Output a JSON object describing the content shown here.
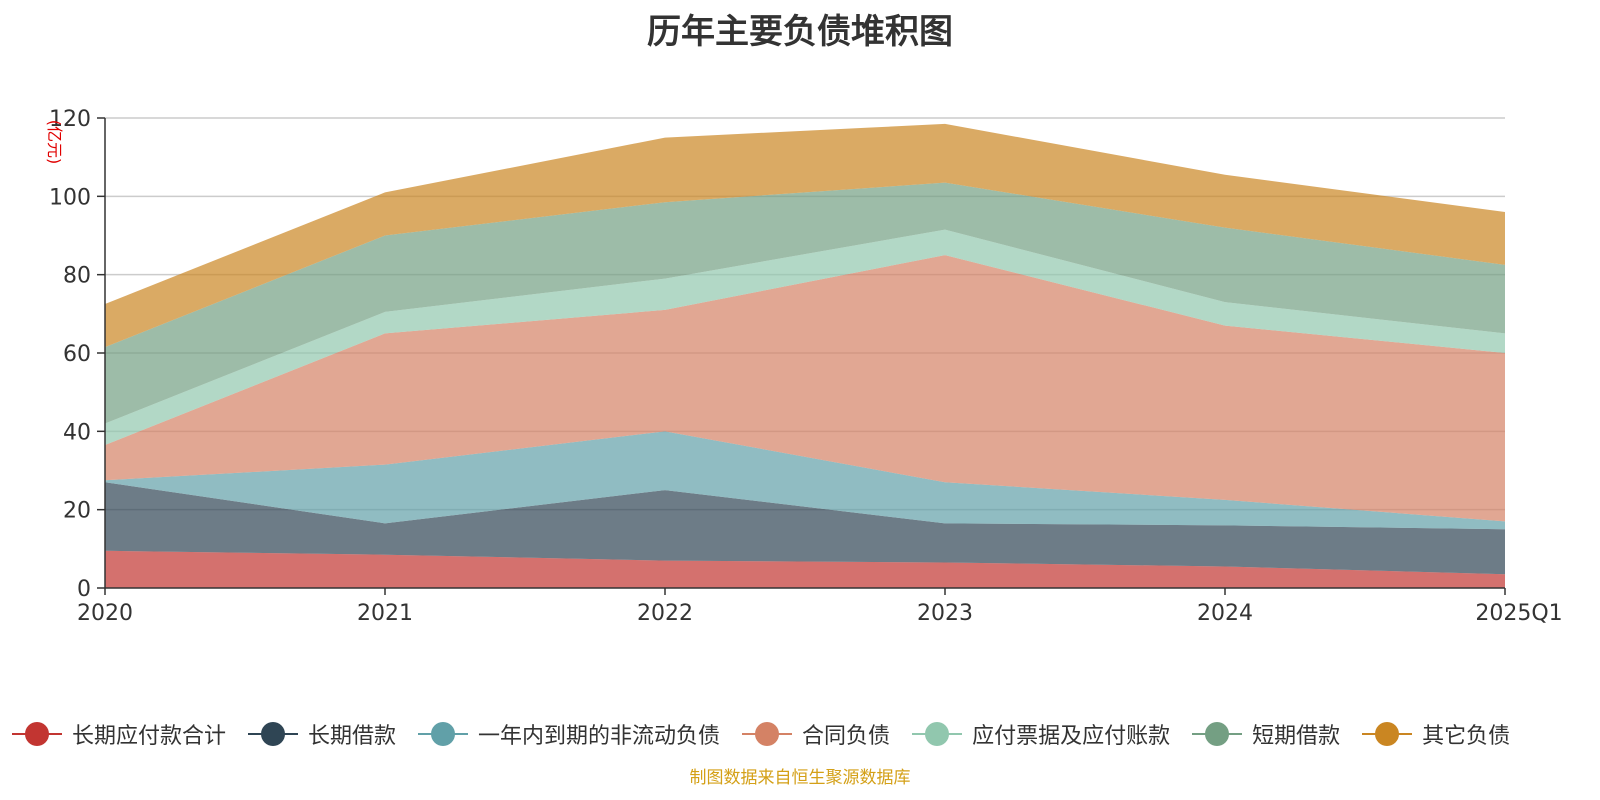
{
  "chart_data": {
    "type": "area",
    "stacked": true,
    "title": "历年主要负债堆积图",
    "unit_label": "(亿元)",
    "categories": [
      "2020",
      "2021",
      "2022",
      "2023",
      "2024",
      "2025Q1"
    ],
    "ylim": [
      0,
      120
    ],
    "yticks": [
      0,
      20,
      40,
      60,
      80,
      100,
      120
    ],
    "grid": true,
    "legend_position": "bottom",
    "series": [
      {
        "name": "长期应付款合计",
        "color": "#c23531",
        "values": [
          9.5,
          8.5,
          7.0,
          6.5,
          5.5,
          3.5
        ]
      },
      {
        "name": "长期借款",
        "color": "#2f4554",
        "values": [
          17.5,
          8.0,
          18.0,
          10.0,
          10.5,
          11.5
        ]
      },
      {
        "name": "一年内到期的非流动负债",
        "color": "#61a0a8",
        "values": [
          0.5,
          15.0,
          15.0,
          10.5,
          6.5,
          2.0
        ]
      },
      {
        "name": "合同负债",
        "color": "#d48265",
        "values": [
          9.0,
          33.5,
          31.0,
          58.0,
          44.5,
          43.0
        ]
      },
      {
        "name": "应付票据及应付账款",
        "color": "#91c7ae",
        "values": [
          5.5,
          5.5,
          8.0,
          6.5,
          6.0,
          5.0
        ]
      },
      {
        "name": "短期借款",
        "color": "#749f83",
        "values": [
          19.5,
          19.5,
          19.5,
          12.0,
          19.0,
          17.5
        ]
      },
      {
        "name": "其它负债",
        "color": "#ca8622",
        "values": [
          11.0,
          11.0,
          16.5,
          15.0,
          13.5,
          13.5
        ]
      }
    ]
  },
  "source_note": "制图数据来自恒生聚源数据库"
}
